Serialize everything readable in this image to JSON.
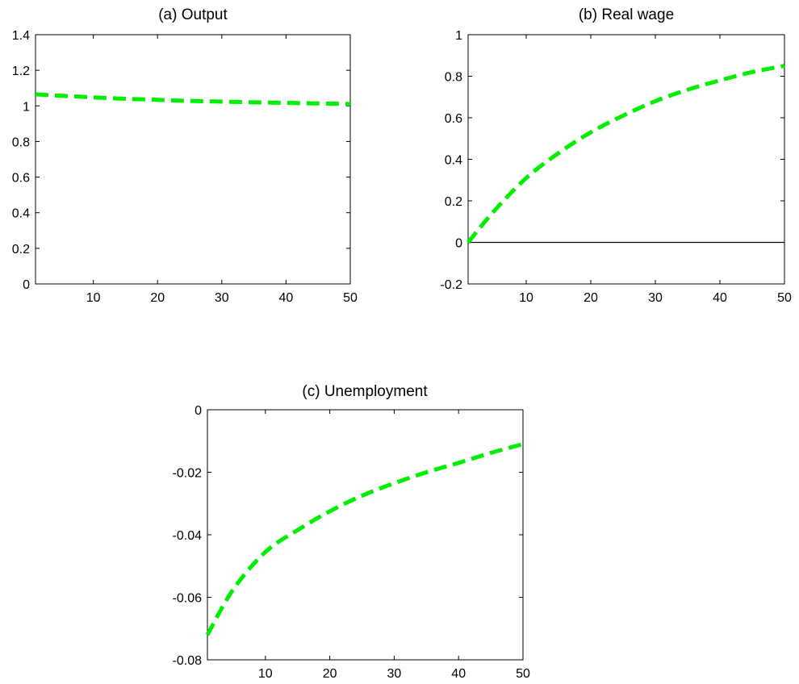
{
  "figure": {
    "background": "#ffffff",
    "axis_color": "#000000",
    "line_color": "#00ee00"
  },
  "chart_data": [
    {
      "id": "output",
      "type": "line",
      "title": "(a) Output",
      "xlabel": "",
      "ylabel": "",
      "xlim": [
        1,
        50
      ],
      "ylim": [
        0,
        1.4
      ],
      "xticks": [
        10,
        20,
        30,
        40,
        50
      ],
      "xtick_labels": [
        "10",
        "20",
        "30",
        "40",
        "50"
      ],
      "yticks": [
        0,
        0.2,
        0.4,
        0.6,
        0.8,
        1,
        1.2,
        1.4
      ],
      "ytick_labels": [
        "0",
        "0.2",
        "0.4",
        "0.6",
        "0.8",
        "1",
        "1.2",
        "1.4"
      ],
      "zero_line": false,
      "grid": false,
      "series": [
        {
          "style": "dashed",
          "color": "#00ee00",
          "x": [
            1,
            5,
            10,
            15,
            20,
            25,
            30,
            35,
            40,
            45,
            50
          ],
          "y": [
            1.065,
            1.057,
            1.048,
            1.04,
            1.034,
            1.028,
            1.024,
            1.02,
            1.017,
            1.014,
            1.011
          ]
        }
      ]
    },
    {
      "id": "real-wage",
      "type": "line",
      "title": "(b) Real wage",
      "xlabel": "",
      "ylabel": "",
      "xlim": [
        1,
        50
      ],
      "ylim": [
        -0.2,
        1
      ],
      "xticks": [
        10,
        20,
        30,
        40,
        50
      ],
      "xtick_labels": [
        "10",
        "20",
        "30",
        "40",
        "50"
      ],
      "yticks": [
        -0.2,
        0,
        0.2,
        0.4,
        0.6,
        0.8,
        1
      ],
      "ytick_labels": [
        "-0.2",
        "0",
        "0.2",
        "0.4",
        "0.6",
        "0.8",
        "1"
      ],
      "zero_line": true,
      "grid": false,
      "series": [
        {
          "style": "dashed",
          "color": "#00ee00",
          "x": [
            1,
            5,
            10,
            15,
            20,
            25,
            30,
            35,
            40,
            45,
            50
          ],
          "y": [
            0.0,
            0.15,
            0.31,
            0.43,
            0.53,
            0.61,
            0.68,
            0.735,
            0.78,
            0.82,
            0.85
          ]
        }
      ]
    },
    {
      "id": "unemployment",
      "type": "line",
      "title": "(c) Unemployment",
      "xlabel": "",
      "ylabel": "",
      "xlim": [
        1,
        50
      ],
      "ylim": [
        -0.08,
        0
      ],
      "xticks": [
        10,
        20,
        30,
        40,
        50
      ],
      "xtick_labels": [
        "10",
        "20",
        "30",
        "40",
        "50"
      ],
      "yticks": [
        -0.08,
        -0.06,
        -0.04,
        -0.02,
        0
      ],
      "ytick_labels": [
        "-0.08",
        "-0.06",
        "-0.04",
        "-0.02",
        "0"
      ],
      "zero_line": false,
      "grid": false,
      "series": [
        {
          "style": "dashed",
          "color": "#00ee00",
          "x": [
            1,
            5,
            10,
            15,
            20,
            25,
            30,
            35,
            40,
            45,
            50
          ],
          "y": [
            -0.072,
            -0.0575,
            -0.0455,
            -0.0385,
            -0.0325,
            -0.0275,
            -0.0235,
            -0.02,
            -0.017,
            -0.0138,
            -0.011
          ]
        }
      ]
    }
  ]
}
